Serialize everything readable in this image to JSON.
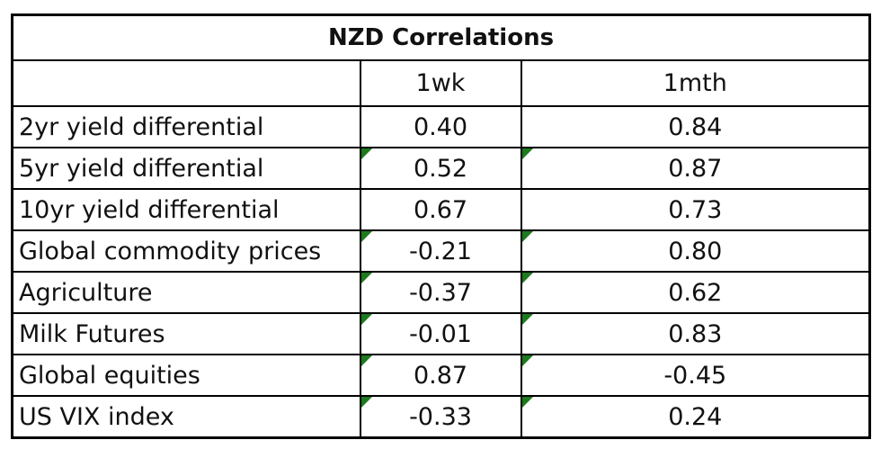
{
  "chart_data": {
    "type": "table",
    "title": "NZD Correlations",
    "columns": [
      "",
      "1wk",
      "1mth"
    ],
    "rows": [
      {
        "label": "2yr yield differential",
        "values": [
          "0.40",
          "0.84"
        ],
        "flags": [
          false,
          false
        ]
      },
      {
        "label": "5yr yield differential",
        "values": [
          "0.52",
          "0.87"
        ],
        "flags": [
          true,
          true
        ]
      },
      {
        "label": "10yr yield differential",
        "values": [
          "0.67",
          "0.73"
        ],
        "flags": [
          false,
          false
        ]
      },
      {
        "label": "Global commodity prices",
        "values": [
          "-0.21",
          "0.80"
        ],
        "flags": [
          true,
          true
        ]
      },
      {
        "label": "Agriculture",
        "values": [
          "-0.37",
          "0.62"
        ],
        "flags": [
          true,
          true
        ]
      },
      {
        "label": "Milk Futures",
        "values": [
          "-0.01",
          "0.83"
        ],
        "flags": [
          true,
          true
        ]
      },
      {
        "label": "Global equities",
        "values": [
          "0.87",
          "-0.45"
        ],
        "flags": [
          true,
          true
        ]
      },
      {
        "label": "US VIX index",
        "values": [
          "-0.33",
          "0.24"
        ],
        "flags": [
          true,
          true
        ]
      }
    ],
    "colors": {
      "flag": "#1e7a1e",
      "border": "#000000"
    }
  }
}
